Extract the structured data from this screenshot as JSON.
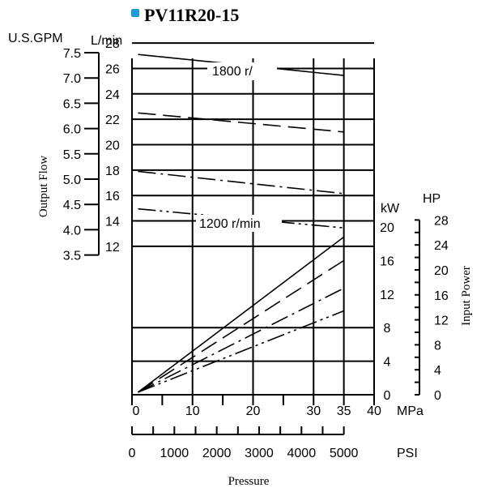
{
  "title": "PV11R20-15",
  "colors": {
    "title_marker": "#1a9ad6",
    "ink": "#000000"
  },
  "chart_data": {
    "type": "line",
    "title": "PV11R20-15",
    "xlabel": "Pressure",
    "x_unit_primary": "MPa",
    "x_unit_secondary": "PSI",
    "xlim": [
      0,
      40
    ],
    "x_ticks": [
      0,
      10,
      20,
      30,
      35,
      40
    ],
    "x_tick_labels": [
      "0",
      "10",
      "20",
      "30",
      "35",
      "40"
    ],
    "psi_ticks": [
      0,
      1000,
      2000,
      3000,
      4000,
      5000
    ],
    "psi_tick_labels": [
      "0",
      "1000",
      "2000",
      "3000",
      "4000",
      "5000"
    ],
    "left_axis": {
      "label": "Output Flow",
      "unit_lpm": "L/min",
      "unit_gpm": "U.S.GPM",
      "ylim": [
        8,
        28
      ],
      "lpm_ticks": [
        12,
        14,
        16,
        18,
        20,
        22,
        24,
        26,
        28
      ],
      "lpm_tick_labels": [
        "12",
        "14",
        "16",
        "18",
        "20",
        "22",
        "24",
        "26",
        "28"
      ],
      "gpm_ticks": [
        3.5,
        4.0,
        4.5,
        5.0,
        5.5,
        6.0,
        6.5,
        7.0,
        7.5
      ],
      "gpm_tick_labels": [
        "3.5",
        "4.0",
        "4.5",
        "5.0",
        "5.5",
        "6.0",
        "6.5",
        "7.0",
        "7.5"
      ]
    },
    "right_axis": {
      "label": "Input Power",
      "unit_kw": "kW",
      "unit_hp": "HP",
      "ylim": [
        0,
        28
      ],
      "kw_ticks": [
        0,
        4,
        8,
        12,
        16,
        20
      ],
      "kw_tick_labels": [
        "0",
        "4",
        "8",
        "12",
        "16",
        "20"
      ],
      "hp_ticks": [
        0,
        4,
        8,
        12,
        16,
        20,
        24,
        28
      ],
      "hp_tick_labels": [
        "0",
        "4",
        "8",
        "12",
        "16",
        "20",
        "24",
        "28"
      ]
    },
    "annotations": [
      "1800 r/",
      "1200 r/min"
    ],
    "series": [
      {
        "axis": "left",
        "style": "solid",
        "x": [
          1,
          35
        ],
        "y": [
          27.1,
          25.45
        ]
      },
      {
        "axis": "left",
        "style": "dashed",
        "x": [
          1,
          35
        ],
        "y": [
          22.5,
          21.0
        ]
      },
      {
        "axis": "left",
        "style": "dashdot",
        "x": [
          1,
          35
        ],
        "y": [
          17.9,
          16.15
        ]
      },
      {
        "axis": "left",
        "style": "dashdotdot",
        "x": [
          1,
          35
        ],
        "y": [
          14.95,
          13.45
        ]
      },
      {
        "axis": "right",
        "style": "solid",
        "x": [
          1,
          35
        ],
        "y": [
          0.3,
          18.8
        ]
      },
      {
        "axis": "right",
        "style": "dashed",
        "x": [
          1,
          35
        ],
        "y": [
          0.3,
          16.0
        ]
      },
      {
        "axis": "right",
        "style": "dashdot",
        "x": [
          1,
          35
        ],
        "y": [
          0.3,
          12.7
        ]
      },
      {
        "axis": "right",
        "style": "dashdotdot",
        "x": [
          1,
          35
        ],
        "y": [
          0.3,
          10.0
        ]
      }
    ],
    "grid": true,
    "legend": "none"
  }
}
